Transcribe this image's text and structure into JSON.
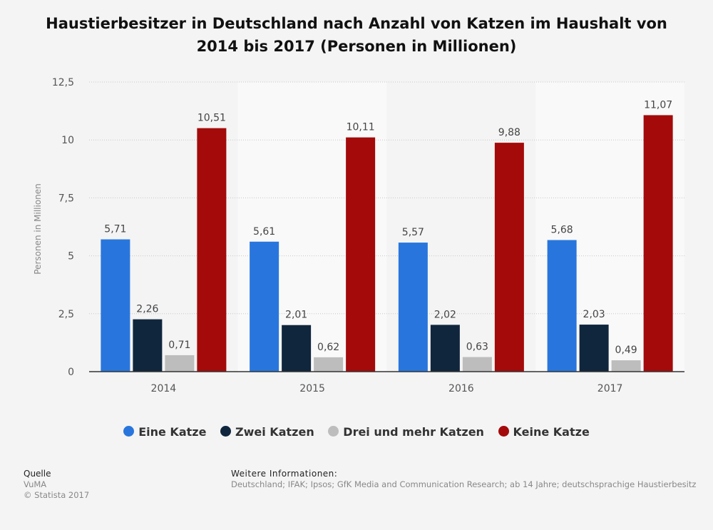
{
  "chart_data": {
    "type": "bar",
    "title": "Haustierbesitzer in Deutschland nach Anzahl von Katzen im Haushalt von 2014 bis 2017 (Personen in Millionen)",
    "xlabel": "",
    "ylabel": "Personen in Millionen",
    "categories": [
      "2014",
      "2015",
      "2016",
      "2017"
    ],
    "ylim": [
      0,
      12.5
    ],
    "yticks": [
      0,
      2.5,
      5,
      7.5,
      10,
      12.5
    ],
    "ytick_labels": [
      "0",
      "2,5",
      "5",
      "7,5",
      "10",
      "12,5"
    ],
    "grid": true,
    "legend_position": "bottom",
    "series": [
      {
        "name": "Eine Katze",
        "color": "#2876dd",
        "values": [
          5.71,
          5.61,
          5.57,
          5.68
        ],
        "labels": [
          "5,71",
          "5,61",
          "5,57",
          "5,68"
        ]
      },
      {
        "name": "Zwei Katzen",
        "color": "#10263d",
        "values": [
          2.26,
          2.01,
          2.02,
          2.03
        ],
        "labels": [
          "2,26",
          "2,01",
          "2,02",
          "2,03"
        ]
      },
      {
        "name": "Drei und mehr Katzen",
        "color": "#bdbdbd",
        "values": [
          0.71,
          0.62,
          0.63,
          0.49
        ],
        "labels": [
          "0,71",
          "0,62",
          "0,63",
          "0,49"
        ]
      },
      {
        "name": "Keine Katze",
        "color": "#a40a0a",
        "values": [
          10.51,
          10.11,
          9.88,
          11.07
        ],
        "labels": [
          "10,51",
          "10,11",
          "9,88",
          "11,07"
        ]
      }
    ]
  },
  "footer": {
    "source_heading": "Quelle",
    "source_name": "VuMA",
    "copyright": "© Statista 2017",
    "info_heading": "Weitere Informationen:",
    "info_text": "Deutschland; IFAK; Ipsos; GfK Media and Communication Research; ab 14 Jahre; deutschsprachige Haustierbesitz"
  }
}
